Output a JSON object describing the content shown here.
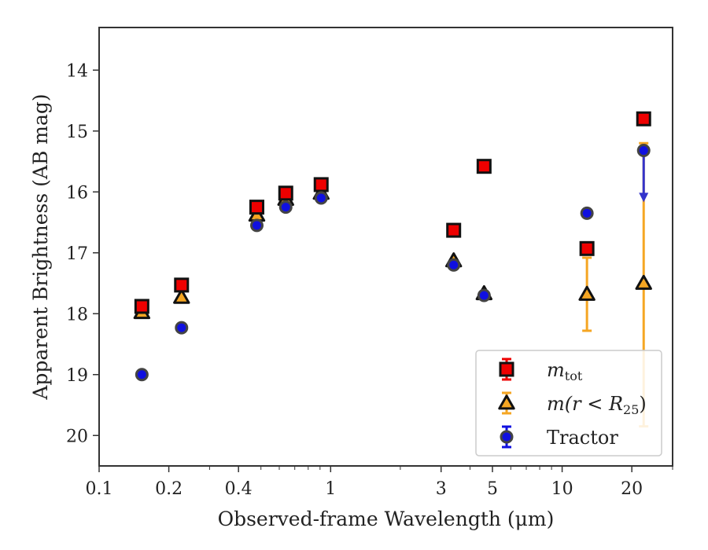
{
  "chart_data": {
    "type": "scatter",
    "xlabel": "Observed-frame Wavelength (μm)",
    "ylabel": "Apparent Brightness (AB mag)",
    "xscale": "log",
    "xlim": [
      0.1,
      30
    ],
    "ylim": [
      20.5,
      13.3
    ],
    "y_inverted": true,
    "x_ticks": [
      0.1,
      0.2,
      0.4,
      1,
      3,
      5,
      10,
      20
    ],
    "x_tick_labels": [
      "0.1",
      "0.2",
      "0.4",
      "1",
      "3",
      "5",
      "10",
      "20"
    ],
    "y_ticks": [
      14,
      15,
      16,
      17,
      18,
      19,
      20
    ],
    "y_tick_labels": [
      "14",
      "15",
      "16",
      "17",
      "18",
      "19",
      "20"
    ],
    "grid": false,
    "legend_placement": "bottom-right",
    "series": [
      {
        "name": "m_tot",
        "legend_main": "m",
        "legend_sub": "tot",
        "marker": "square",
        "color": "#ee0000",
        "edge": "#111111",
        "points": [
          {
            "x": 0.153,
            "y": 17.88
          },
          {
            "x": 0.227,
            "y": 17.53
          },
          {
            "x": 0.48,
            "y": 16.25
          },
          {
            "x": 0.64,
            "y": 16.02
          },
          {
            "x": 0.91,
            "y": 15.88
          },
          {
            "x": 3.4,
            "y": 16.63
          },
          {
            "x": 4.6,
            "y": 15.58
          },
          {
            "x": 12.8,
            "y": 16.93
          },
          {
            "x": 22.5,
            "y": 14.8
          }
        ]
      },
      {
        "name": "m(r < R25)",
        "legend_main": "m(r < R",
        "legend_sub": "25",
        "legend_tail": ")",
        "marker": "triangle",
        "color": "#f5a623",
        "edge": "#111111",
        "points": [
          {
            "x": 0.153,
            "y": 17.98
          },
          {
            "x": 0.227,
            "y": 17.73
          },
          {
            "x": 0.48,
            "y": 16.38
          },
          {
            "x": 0.64,
            "y": 16.12
          },
          {
            "x": 0.91,
            "y": 16.02
          },
          {
            "x": 3.4,
            "y": 17.13
          },
          {
            "x": 4.6,
            "y": 17.67
          },
          {
            "x": 12.8,
            "y": 17.68,
            "yerr": 0.6
          },
          {
            "x": 22.5,
            "y": 17.5,
            "yerr_low": 2.3,
            "yerr_high": 2.35
          }
        ]
      },
      {
        "name": "Tractor",
        "legend_main": "Tractor",
        "marker": "circle",
        "color": "#1010e0",
        "edge": "#444444",
        "points": [
          {
            "x": 0.153,
            "y": 19.0
          },
          {
            "x": 0.227,
            "y": 18.23
          },
          {
            "x": 0.48,
            "y": 16.55
          },
          {
            "x": 0.64,
            "y": 16.25
          },
          {
            "x": 0.91,
            "y": 16.1
          },
          {
            "x": 3.4,
            "y": 17.2
          },
          {
            "x": 4.6,
            "y": 17.7
          },
          {
            "x": 12.8,
            "y": 16.35
          },
          {
            "x": 22.5,
            "y": 15.32,
            "upper_limit_arrow_to": 16.13
          }
        ]
      }
    ]
  }
}
